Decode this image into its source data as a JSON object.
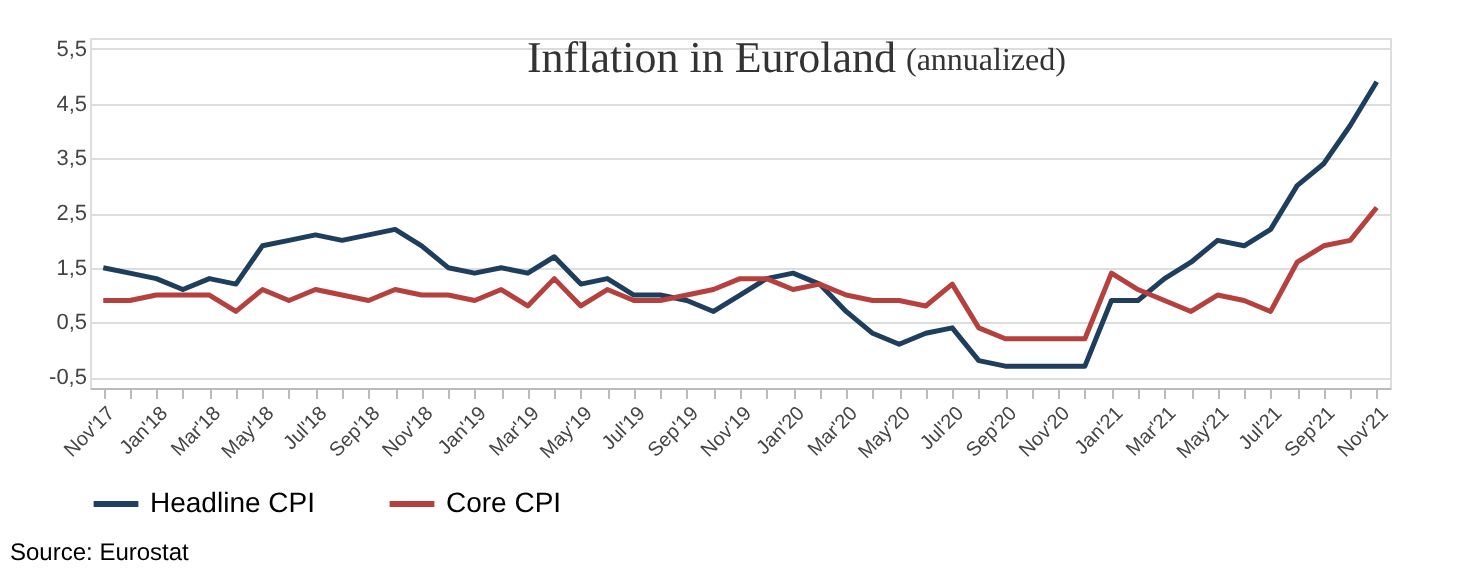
{
  "chart_data": {
    "type": "line",
    "title": "Inflation in Euroland",
    "subtitle": "(annualized)",
    "categories": [
      "Nov'17",
      null,
      "Jan'18",
      null,
      "Mar'18",
      null,
      "May'18",
      null,
      "Jul'18",
      null,
      "Sep'18",
      null,
      "Nov'18",
      null,
      "Jan'19",
      null,
      "Mar'19",
      null,
      "May'19",
      null,
      "Jul'19",
      null,
      "Sep'19",
      null,
      "Nov'19",
      null,
      "Jan'20",
      null,
      "Mar'20",
      null,
      "May'20",
      null,
      "Jul'20",
      null,
      "Sep'20",
      null,
      "Nov'20",
      null,
      "Jan'21",
      null,
      "Mar'21",
      null,
      "May'21",
      null,
      "Jul'21",
      null,
      "Sep'21",
      null,
      "Nov'21"
    ],
    "series": [
      {
        "name": "Headline CPI",
        "color": "#1f3d5c",
        "values": [
          1.5,
          1.4,
          1.3,
          1.1,
          1.3,
          1.2,
          1.9,
          2.0,
          2.1,
          2.0,
          2.1,
          2.2,
          1.9,
          1.5,
          1.4,
          1.5,
          1.4,
          1.7,
          1.2,
          1.3,
          1.0,
          1.0,
          0.9,
          0.7,
          1.0,
          1.3,
          1.4,
          1.2,
          0.7,
          0.3,
          0.1,
          0.3,
          0.4,
          -0.2,
          -0.3,
          -0.3,
          -0.3,
          -0.3,
          0.9,
          0.9,
          1.3,
          1.6,
          2.0,
          1.9,
          2.2,
          3.0,
          3.4,
          4.1,
          4.9
        ]
      },
      {
        "name": "Core CPI",
        "color": "#b5413f",
        "values": [
          0.9,
          0.9,
          1.0,
          1.0,
          1.0,
          0.7,
          1.1,
          0.9,
          1.1,
          1.0,
          0.9,
          1.1,
          1.0,
          1.0,
          0.9,
          1.1,
          0.8,
          1.3,
          0.8,
          1.1,
          0.9,
          0.9,
          1.0,
          1.1,
          1.3,
          1.3,
          1.1,
          1.2,
          1.0,
          0.9,
          0.9,
          0.8,
          1.2,
          0.4,
          0.2,
          0.2,
          0.2,
          0.2,
          1.4,
          1.1,
          0.9,
          0.7,
          1.0,
          0.9,
          0.7,
          1.6,
          1.9,
          2.0,
          2.6
        ]
      }
    ],
    "ylim": [
      -0.7,
      5.7
    ],
    "yticks": [
      {
        "value": -0.5,
        "label": "-0,5"
      },
      {
        "value": 0.5,
        "label": "0,5"
      },
      {
        "value": 1.5,
        "label": "1,5"
      },
      {
        "value": 2.5,
        "label": "2,5"
      },
      {
        "value": 3.5,
        "label": "3,5"
      },
      {
        "value": 4.5,
        "label": "4,5"
      },
      {
        "value": 5.5,
        "label": "5,5"
      }
    ],
    "grid": "y",
    "legend": "bottom",
    "marker": "none",
    "line_style": "solid",
    "annotations": [
      "Source: Eurostat"
    ]
  }
}
